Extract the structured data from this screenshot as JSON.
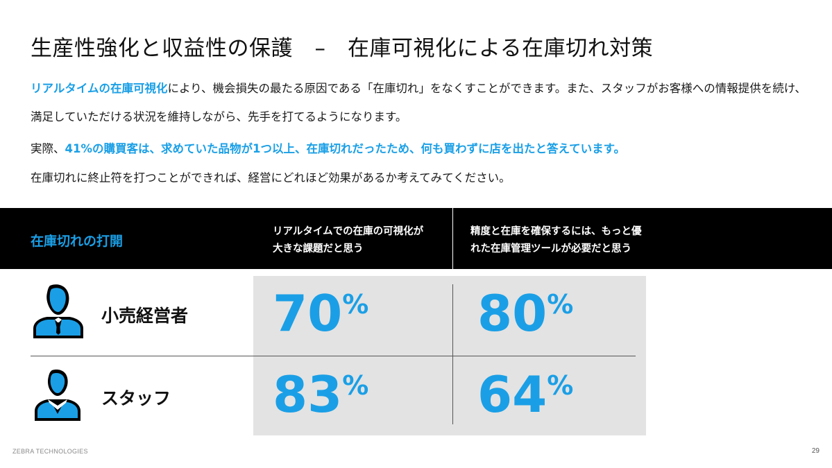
{
  "title": "生産性強化と収益性の保護　–　在庫可視化による在庫切れ対策",
  "intro": {
    "p1_highlight": "リアルタイムの在庫可視化",
    "p1_rest": "により、機会損失の最たる原因である「在庫切れ」をなくすことができます。また、スタッフがお客様への情報提供を続け、",
    "p2": "満足していただける状況を維持しながら、先手を打てるようになります。",
    "p3_lead": "実際、",
    "p3_highlight": "41%の購買客は、求めていた品物が1つ以上、在庫切れだったため、何も買わずに店を出たと答えています。",
    "p4": "在庫切れに終止符を打つことができれば、経営にどれほど効果があるか考えてみてください。"
  },
  "table": {
    "header_label": "在庫切れの打開",
    "col1": [
      "リアルタイムでの在庫の可視化が",
      "大きな課題だと思う"
    ],
    "col2": [
      "精度と在庫を確保するには、もっと優",
      "れた在庫管理ツールが必要だと思う"
    ],
    "rows": [
      {
        "label": "小売経営者",
        "icon": "manager-icon",
        "v1": "70",
        "v2": "80"
      },
      {
        "label": "スタッフ",
        "icon": "staff-icon",
        "v1": "83",
        "v2": "64"
      }
    ],
    "percent_sign": "%"
  },
  "footer": {
    "company": "ZEBRA TECHNOLOGIES",
    "page": "29"
  },
  "colors": {
    "accent": "#1a9fe6",
    "header_bg": "#000000",
    "panel_bg": "#e3e3e3"
  }
}
